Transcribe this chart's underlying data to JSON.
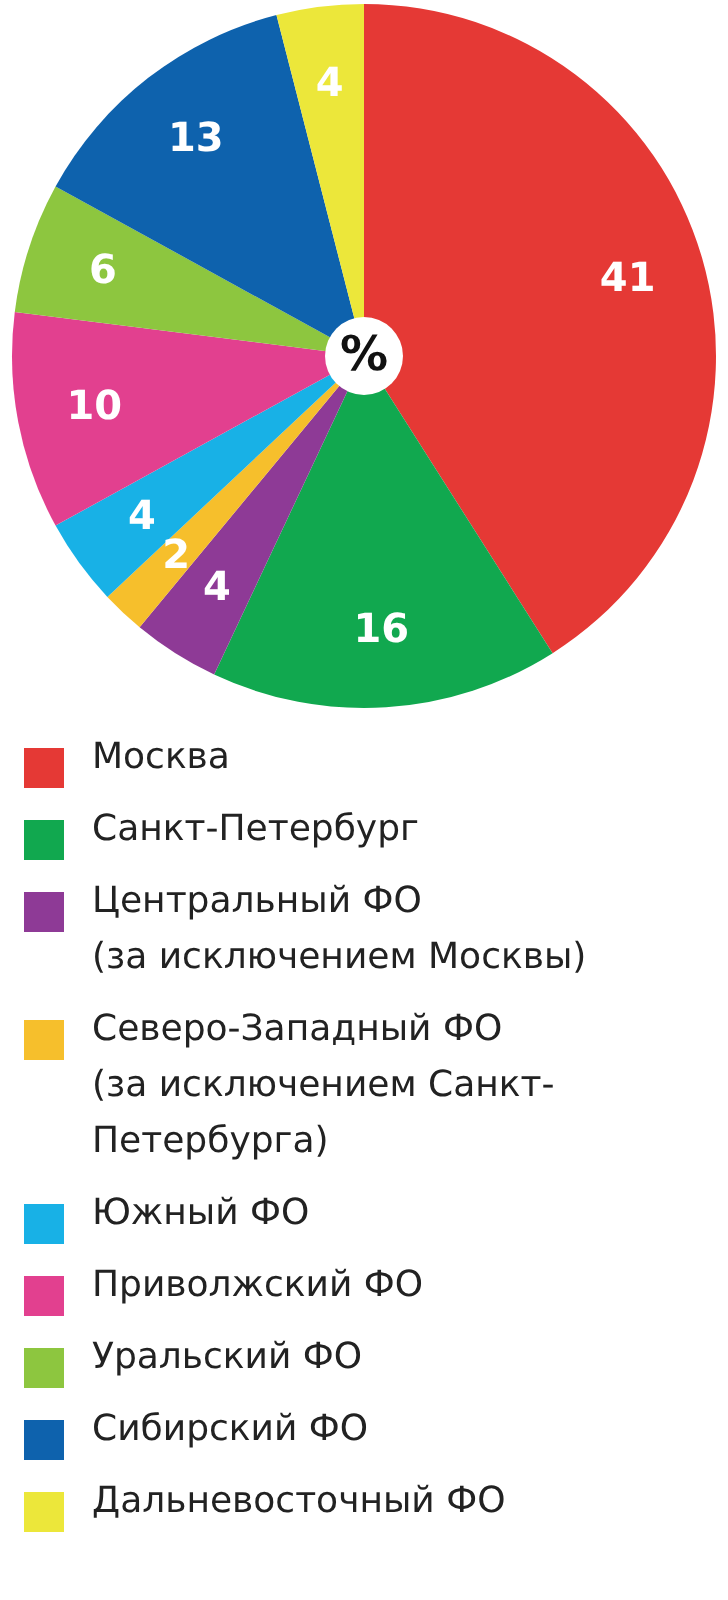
{
  "chart_data": {
    "type": "pie",
    "data_labels": true,
    "legend": "bottom",
    "annotations": [
      "%"
    ],
    "categories": [
      "Москва",
      "Санкт-Петербург",
      "Центральный ФО (за исключением Москвы)",
      "Северо-Западный ФО (за исключением Санкт-Петербурга)",
      "Южный ФО",
      "Приволжский ФО",
      "Уральский ФО",
      "Сибирский ФО",
      "Дальневосточный ФО"
    ],
    "values": [
      41,
      16,
      4,
      2,
      4,
      10,
      6,
      13,
      4
    ],
    "colors": [
      "#e53935",
      "#11a84f",
      "#8e3a96",
      "#f6bf2c",
      "#18b1e6",
      "#e2408f",
      "#8dc63f",
      "#0e62ad",
      "#ece73a"
    ]
  }
}
